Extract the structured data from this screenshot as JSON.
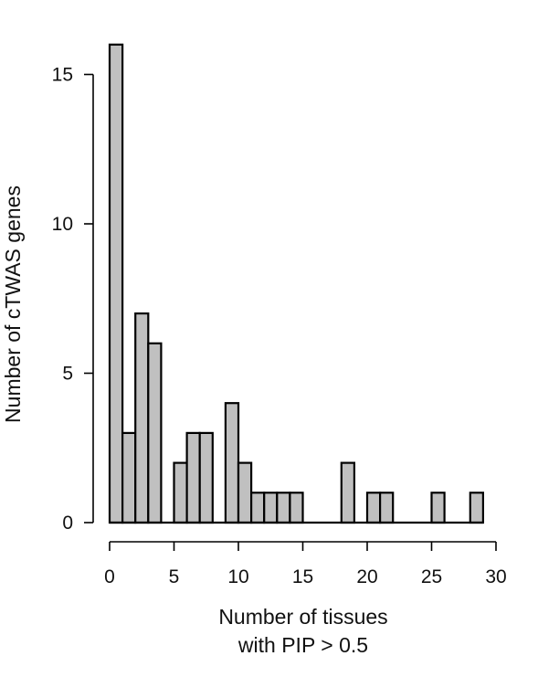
{
  "chart_data": {
    "type": "bar",
    "subtype": "histogram",
    "bin_width": 1,
    "bins": [
      {
        "x0": 0,
        "x1": 1,
        "count": 16
      },
      {
        "x0": 1,
        "x1": 2,
        "count": 3
      },
      {
        "x0": 2,
        "x1": 3,
        "count": 7
      },
      {
        "x0": 3,
        "x1": 4,
        "count": 6
      },
      {
        "x0": 4,
        "x1": 5,
        "count": 0
      },
      {
        "x0": 5,
        "x1": 6,
        "count": 2
      },
      {
        "x0": 6,
        "x1": 7,
        "count": 3
      },
      {
        "x0": 7,
        "x1": 8,
        "count": 3
      },
      {
        "x0": 8,
        "x1": 9,
        "count": 0
      },
      {
        "x0": 9,
        "x1": 10,
        "count": 4
      },
      {
        "x0": 10,
        "x1": 11,
        "count": 2
      },
      {
        "x0": 11,
        "x1": 12,
        "count": 1
      },
      {
        "x0": 12,
        "x1": 13,
        "count": 1
      },
      {
        "x0": 13,
        "x1": 14,
        "count": 1
      },
      {
        "x0": 14,
        "x1": 15,
        "count": 1
      },
      {
        "x0": 15,
        "x1": 16,
        "count": 0
      },
      {
        "x0": 16,
        "x1": 17,
        "count": 0
      },
      {
        "x0": 17,
        "x1": 18,
        "count": 0
      },
      {
        "x0": 18,
        "x1": 19,
        "count": 2
      },
      {
        "x0": 19,
        "x1": 20,
        "count": 0
      },
      {
        "x0": 20,
        "x1": 21,
        "count": 1
      },
      {
        "x0": 21,
        "x1": 22,
        "count": 1
      },
      {
        "x0": 22,
        "x1": 23,
        "count": 0
      },
      {
        "x0": 23,
        "x1": 24,
        "count": 0
      },
      {
        "x0": 24,
        "x1": 25,
        "count": 0
      },
      {
        "x0": 25,
        "x1": 26,
        "count": 1
      },
      {
        "x0": 26,
        "x1": 27,
        "count": 0
      },
      {
        "x0": 27,
        "x1": 28,
        "count": 0
      },
      {
        "x0": 28,
        "x1": 29,
        "count": 1
      }
    ],
    "xlabel": [
      "Number of tissues",
      "with PIP > 0.5"
    ],
    "ylabel": "Number of cTWAS genes",
    "xlim": [
      0,
      30
    ],
    "ylim": [
      0,
      16
    ],
    "x_ticks": [
      0,
      5,
      10,
      15,
      20,
      25,
      30
    ],
    "y_ticks": [
      0,
      5,
      10,
      15
    ],
    "grid": false,
    "legend": "none",
    "bar_color": "#c0c0c0",
    "edge_color": "#000000"
  }
}
